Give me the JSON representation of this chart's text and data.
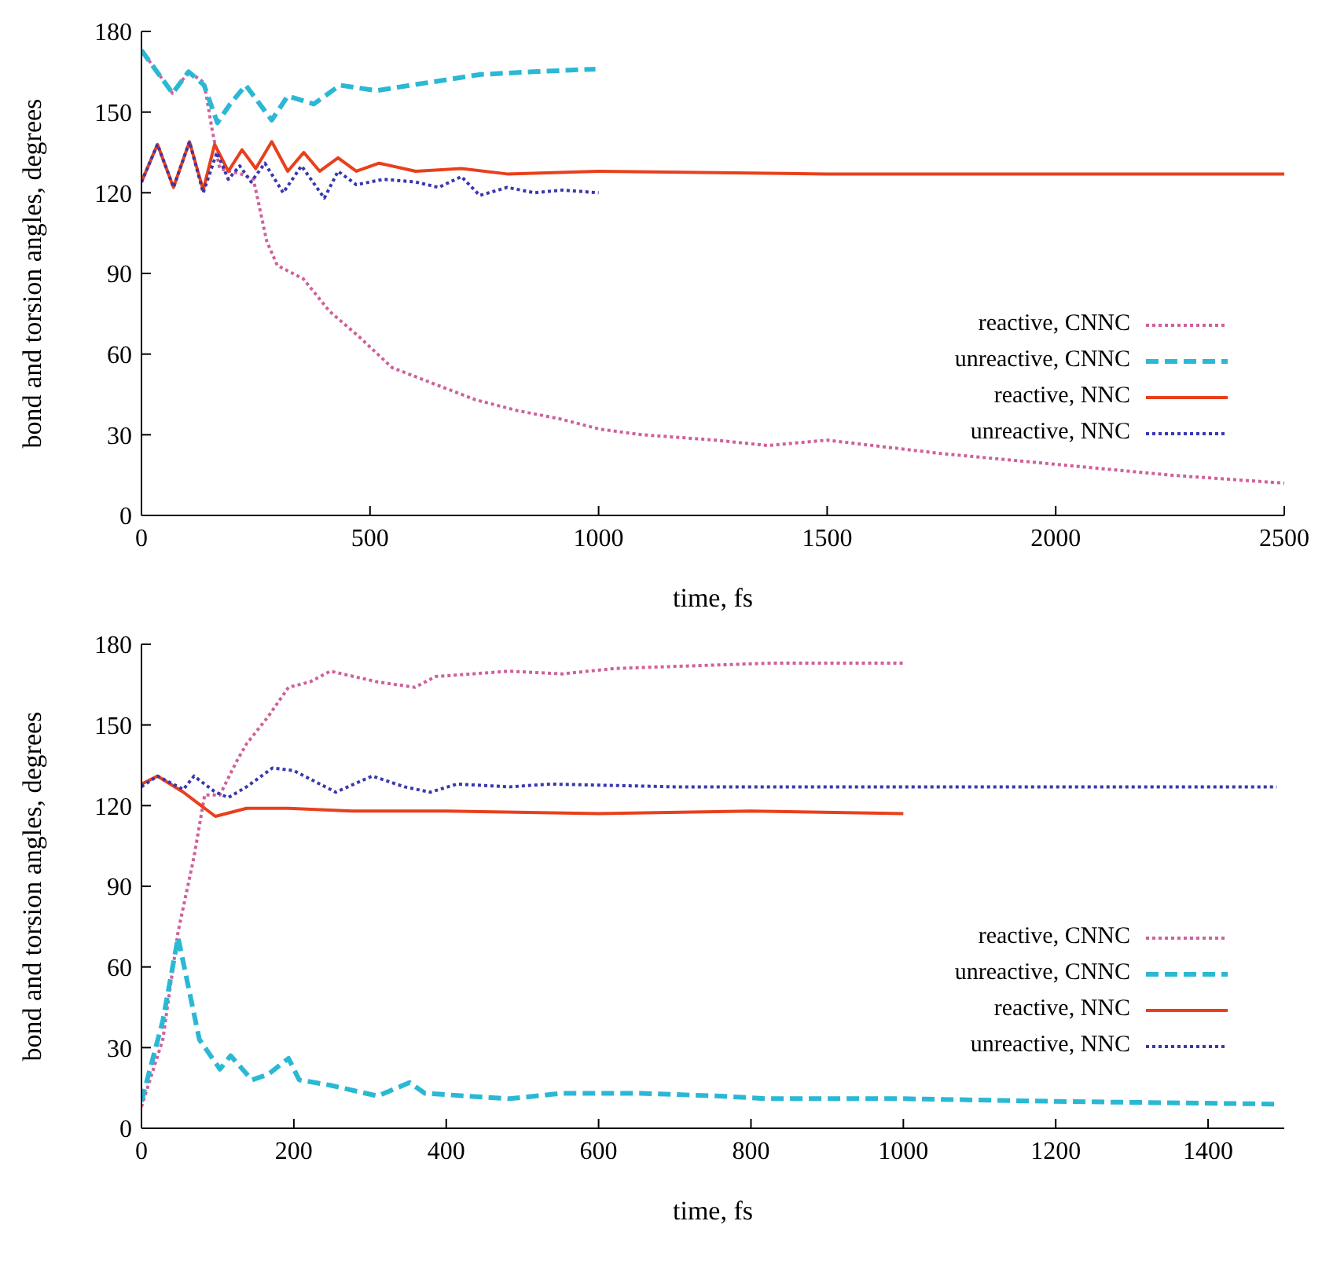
{
  "chart_data": [
    {
      "type": "line",
      "xlabel": "time, fs",
      "ylabel": "bond and torsion angles, degrees",
      "xlim": [
        0,
        2500
      ],
      "xticks": [
        0,
        500,
        1000,
        1500,
        2000,
        2500
      ],
      "ylim": [
        0,
        180
      ],
      "yticks": [
        0,
        30,
        60,
        90,
        120,
        150,
        180
      ],
      "legend": "right",
      "marker": "none",
      "series": [
        {
          "name": "reactive, CNNC",
          "color": "#d0609a",
          "line_style": "dotted",
          "x": [
            0,
            68,
            103,
            137,
            154,
            171,
            217,
            245,
            274,
            297,
            354,
            411,
            479,
            548,
            639,
            731,
            822,
            913,
            1005,
            1096,
            1256,
            1370,
            1500,
            1750,
            2000,
            2250,
            2500
          ],
          "values": [
            173,
            157,
            165,
            161,
            144,
            129,
            127,
            125,
            102,
            93,
            88,
            76,
            66,
            55,
            49,
            43,
            39,
            36,
            32,
            30,
            28,
            26,
            28,
            23,
            19,
            15,
            12
          ]
        },
        {
          "name": "unreactive, CNNC",
          "color": "#2ab8d4",
          "line_style": "dashed",
          "x": [
            0,
            68,
            103,
            137,
            166,
            194,
            228,
            285,
            320,
            377,
            434,
            514,
            628,
            742,
            856,
            993
          ],
          "values": [
            173,
            157,
            165,
            160,
            146,
            153,
            160,
            147,
            156,
            153,
            160,
            158,
            161,
            164,
            165,
            166
          ]
        },
        {
          "name": "reactive, NNC",
          "color": "#e8401c",
          "line_style": "solid",
          "x": [
            0,
            35,
            70,
            105,
            135,
            160,
            190,
            220,
            250,
            285,
            320,
            355,
            390,
            430,
            470,
            520,
            600,
            700,
            800,
            1000,
            1500,
            2000,
            2500
          ],
          "values": [
            124,
            138,
            122,
            139,
            121,
            138,
            128,
            136,
            129,
            139,
            128,
            135,
            128,
            133,
            128,
            131,
            128,
            129,
            127,
            128,
            127,
            127,
            127
          ]
        },
        {
          "name": "unreactive, NNC",
          "color": "#3838b0",
          "line_style": "dotted",
          "x": [
            0,
            35,
            70,
            105,
            135,
            165,
            190,
            215,
            240,
            270,
            310,
            350,
            400,
            430,
            470,
            530,
            600,
            650,
            700,
            740,
            800,
            860,
            920,
            1000
          ],
          "values": [
            124,
            138,
            122,
            139,
            120,
            135,
            125,
            130,
            124,
            131,
            120,
            130,
            118,
            128,
            123,
            125,
            124,
            122,
            126,
            119,
            122,
            120,
            121,
            120
          ]
        }
      ]
    },
    {
      "type": "line",
      "xlabel": "time, fs",
      "ylabel": "bond and torsion angles, degrees",
      "xlim": [
        0,
        1500
      ],
      "xticks": [
        0,
        200,
        400,
        600,
        800,
        1000,
        1200,
        1400
      ],
      "ylim": [
        0,
        180
      ],
      "yticks": [
        0,
        30,
        60,
        90,
        120,
        150,
        180
      ],
      "legend": "right",
      "marker": "none",
      "series": [
        {
          "name": "reactive, CNNC",
          "color": "#d0609a",
          "line_style": "dotted",
          "x": [
            0,
            28,
            48,
            69,
            83,
            103,
            124,
            138,
            166,
            193,
            221,
            248,
            310,
            359,
            386,
            483,
            552,
            621,
            724,
            828,
            1000
          ],
          "values": [
            8,
            33,
            73,
            101,
            124,
            124,
            136,
            143,
            153,
            164,
            166,
            170,
            166,
            164,
            168,
            170,
            169,
            171,
            172,
            173,
            173
          ]
        },
        {
          "name": "unreactive, CNNC",
          "color": "#2ab8d4",
          "line_style": "dashed",
          "x": [
            0,
            28,
            48,
            62,
            76,
            103,
            117,
            145,
            166,
            193,
            207,
            248,
            310,
            352,
            372,
            483,
            552,
            655,
            759,
            821,
            1000,
            1200,
            1490
          ],
          "values": [
            10,
            40,
            71,
            52,
            33,
            22,
            27,
            18,
            20,
            26,
            18,
            16,
            12,
            17,
            13,
            11,
            13,
            13,
            12,
            11,
            11,
            10,
            9
          ]
        },
        {
          "name": "reactive, NNC",
          "color": "#e8401c",
          "line_style": "solid",
          "x": [
            0,
            21,
            55,
            83,
            97,
            138,
            193,
            276,
            400,
            600,
            800,
            1000
          ],
          "values": [
            128,
            131,
            125,
            119,
            116,
            119,
            119,
            118,
            118,
            117,
            118,
            117
          ]
        },
        {
          "name": "unreactive, NNC",
          "color": "#3838b0",
          "line_style": "dotted",
          "x": [
            0,
            21,
            55,
            69,
            97,
            114,
            138,
            172,
            200,
            255,
            303,
            345,
            379,
            414,
            483,
            538,
            700,
            1000,
            1200,
            1490
          ],
          "values": [
            127,
            131,
            126,
            131,
            125,
            123,
            127,
            134,
            133,
            125,
            131,
            127,
            125,
            128,
            127,
            128,
            127,
            127,
            127,
            127
          ]
        }
      ]
    }
  ]
}
